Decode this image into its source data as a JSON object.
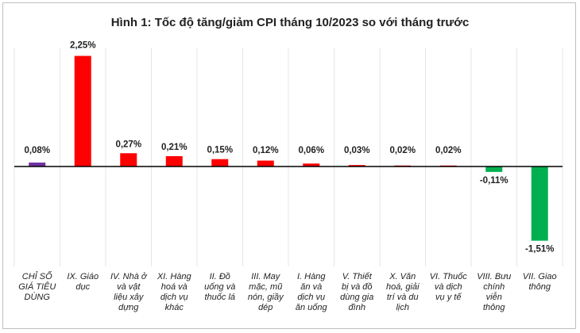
{
  "chart_data": {
    "type": "bar",
    "title": "Hình 1: Tốc độ tăng/giảm CPI tháng 10/2023 so với tháng trước",
    "categories": [
      [
        "CHỈ SỐ",
        "GIÁ TIÊU",
        "DÙNG"
      ],
      [
        "IX. Giáo",
        "dục"
      ],
      [
        "IV. Nhà ở",
        "và vật",
        "liệu xây",
        "dựng"
      ],
      [
        "XI. Hàng",
        "hoá và",
        "dịch vụ",
        "khác"
      ],
      [
        "II. Đồ",
        "uống và",
        "thuốc lá"
      ],
      [
        "III. May",
        "mặc, mũ",
        "nón, giầy",
        "dép"
      ],
      [
        "I. Hàng",
        "ăn và",
        "dịch vụ",
        "ăn uống"
      ],
      [
        "V. Thiết",
        "bị và đồ",
        "dùng gia",
        "đình"
      ],
      [
        "X. Văn",
        "hoá, giải",
        "trí và du",
        "lịch"
      ],
      [
        "VI. Thuốc",
        "và dịch",
        "vụ y tế"
      ],
      [
        "VIII. Bưu",
        "chính",
        "viễn",
        "thông"
      ],
      [
        "VII. Giao",
        "thông"
      ]
    ],
    "values": [
      0.08,
      2.25,
      0.27,
      0.21,
      0.15,
      0.12,
      0.06,
      0.03,
      0.02,
      0.02,
      -0.11,
      -1.51
    ],
    "value_labels": [
      "0,08%",
      "2,25%",
      "0,27%",
      "0,21%",
      "0,15%",
      "0,12%",
      "0,06%",
      "0,03%",
      "0,02%",
      "0,02%",
      "-0,11%",
      "-1,51%"
    ],
    "bar_colors": [
      "#7030a0",
      "#ff0000",
      "#ff0000",
      "#ff0000",
      "#ff0000",
      "#ff0000",
      "#ff0000",
      "#ff0000",
      "#ff0000",
      "#ff0000",
      "#00b050",
      "#00b050"
    ],
    "ylim": [
      -1.51,
      2.25
    ],
    "grid": true,
    "legend": "none"
  }
}
